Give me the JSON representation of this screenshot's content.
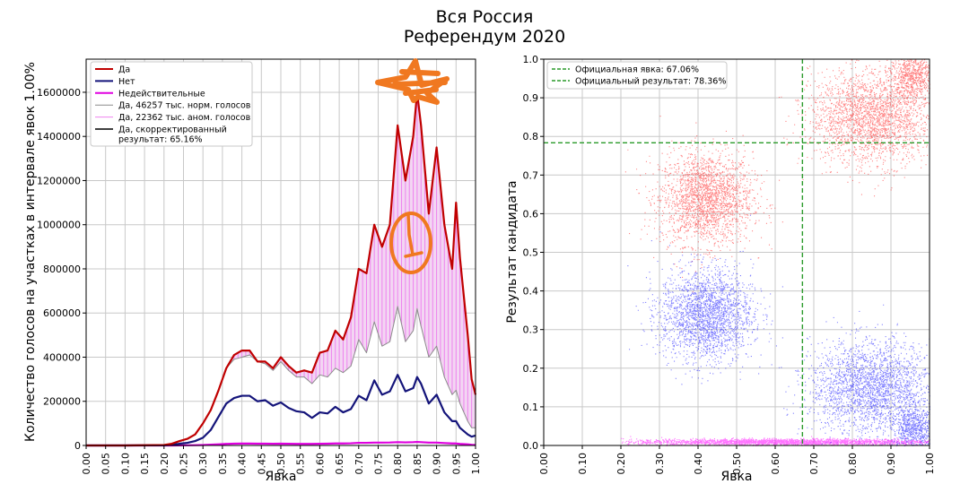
{
  "page": {
    "title": "Вся Россия",
    "subtitle": "Референдум 2020"
  },
  "colors": {
    "yes": "#c00000",
    "no": "#14147a",
    "invalid": "#e000e0",
    "norm": "#8c8c8c",
    "anom": "#ee82ee",
    "corrected": "#000000",
    "official": "#2a9a2a",
    "scatter_yes": "#ff2020",
    "scatter_no": "#1414ff",
    "scatter_invalid": "#ff00ff",
    "annotation": "#f07820"
  },
  "chart_data": [
    {
      "type": "line",
      "xlabel": "Явка",
      "ylabel": "Количество голосов на участках в интервале явок 1.00%",
      "xlim": [
        0,
        1
      ],
      "ylim": [
        0,
        1750000
      ],
      "x_ticks": [
        "0.00",
        "0.05",
        "0.10",
        "0.15",
        "0.20",
        "0.25",
        "0.30",
        "0.35",
        "0.40",
        "0.45",
        "0.50",
        "0.55",
        "0.60",
        "0.65",
        "0.70",
        "0.75",
        "0.80",
        "0.85",
        "0.90",
        "0.95",
        "1.00"
      ],
      "y_ticks": [
        "0",
        "200000",
        "400000",
        "600000",
        "800000",
        "1000000",
        "1200000",
        "1400000",
        "1600000"
      ],
      "grid": true,
      "legend_position": "top-left",
      "legend": [
        {
          "label": "Да",
          "series": "yes"
        },
        {
          "label": "Нет",
          "series": "no"
        },
        {
          "label": "Недействительные",
          "series": "invalid"
        },
        {
          "label": "Да, 46257 тыс. норм. голосов",
          "series": "norm"
        },
        {
          "label": "Да, 22362 тыс. аном. голосов",
          "series": "anom"
        },
        {
          "label": "Да, скорректированный",
          "label2": "результат: 65.16%",
          "series": "corrected"
        }
      ],
      "x": [
        0,
        0.1,
        0.2,
        0.22,
        0.24,
        0.26,
        0.28,
        0.3,
        0.32,
        0.34,
        0.36,
        0.38,
        0.4,
        0.42,
        0.44,
        0.46,
        0.48,
        0.5,
        0.52,
        0.54,
        0.56,
        0.58,
        0.6,
        0.62,
        0.64,
        0.66,
        0.68,
        0.7,
        0.72,
        0.74,
        0.76,
        0.78,
        0.8,
        0.82,
        0.84,
        0.85,
        0.86,
        0.88,
        0.9,
        0.92,
        0.94,
        0.95,
        0.96,
        0.98,
        0.99,
        1.0
      ],
      "series": [
        {
          "name": "Да",
          "key": "yes",
          "values": [
            0,
            0,
            2000,
            8000,
            20000,
            30000,
            50000,
            100000,
            160000,
            250000,
            350000,
            410000,
            430000,
            430000,
            380000,
            380000,
            350000,
            400000,
            360000,
            330000,
            340000,
            330000,
            420000,
            430000,
            520000,
            480000,
            580000,
            800000,
            780000,
            1000000,
            900000,
            1000000,
            1450000,
            1200000,
            1400000,
            1600000,
            1450000,
            1050000,
            1350000,
            1000000,
            800000,
            1100000,
            850000,
            500000,
            300000,
            230000
          ]
        },
        {
          "name": "Нет",
          "key": "no",
          "values": [
            0,
            0,
            1000,
            3000,
            8000,
            12000,
            20000,
            35000,
            70000,
            130000,
            190000,
            215000,
            225000,
            225000,
            200000,
            205000,
            180000,
            195000,
            170000,
            155000,
            150000,
            125000,
            150000,
            145000,
            175000,
            150000,
            165000,
            225000,
            205000,
            295000,
            230000,
            245000,
            320000,
            245000,
            260000,
            310000,
            280000,
            190000,
            230000,
            150000,
            110000,
            110000,
            80000,
            50000,
            40000,
            45000
          ]
        },
        {
          "name": "Недействительные",
          "key": "invalid",
          "values": [
            0,
            0,
            0,
            0,
            500,
            800,
            1200,
            2000,
            3500,
            5000,
            7000,
            8000,
            8500,
            8500,
            8000,
            8000,
            7500,
            8000,
            7500,
            7000,
            7000,
            7000,
            7500,
            8000,
            9000,
            9000,
            10000,
            12000,
            12000,
            13000,
            13000,
            13500,
            15000,
            14000,
            15000,
            16000,
            15000,
            13000,
            13000,
            11000,
            9000,
            9000,
            7000,
            5000,
            3000,
            2000
          ]
        },
        {
          "name": "Да, 46257 тыс. норм. голосов",
          "key": "norm",
          "values": [
            0,
            0,
            2000,
            8000,
            20000,
            30000,
            50000,
            100000,
            160000,
            250000,
            350000,
            390000,
            400000,
            410000,
            380000,
            370000,
            340000,
            380000,
            340000,
            310000,
            310000,
            280000,
            320000,
            310000,
            350000,
            330000,
            360000,
            480000,
            420000,
            560000,
            450000,
            470000,
            630000,
            470000,
            520000,
            620000,
            540000,
            400000,
            450000,
            310000,
            230000,
            250000,
            190000,
            110000,
            80000,
            80000
          ]
        }
      ]
    },
    {
      "type": "scatter",
      "xlabel": "Явка",
      "ylabel": "Результат кандидата",
      "xlim": [
        0,
        1
      ],
      "ylim": [
        0,
        1
      ],
      "x_ticks": [
        "0.00",
        "0.10",
        "0.20",
        "0.30",
        "0.40",
        "0.50",
        "0.60",
        "0.70",
        "0.80",
        "0.90",
        "1.00"
      ],
      "y_ticks": [
        "0.0",
        "0.1",
        "0.2",
        "0.3",
        "0.4",
        "0.5",
        "0.6",
        "0.7",
        "0.8",
        "0.9",
        "1.0"
      ],
      "grid": true,
      "legend_position": "top-left",
      "official_turnout": 0.6706,
      "official_result": 0.7836,
      "legend": [
        {
          "label": "Официальная явка: 67.06%"
        },
        {
          "label": "Официальный результат: 78.36%"
        }
      ],
      "clusters": [
        {
          "series": "yes",
          "center": [
            0.42,
            0.64
          ],
          "spread": [
            0.06,
            0.06
          ],
          "n": 2200
        },
        {
          "series": "yes",
          "center": [
            0.85,
            0.85
          ],
          "spread": [
            0.08,
            0.06
          ],
          "n": 2400
        },
        {
          "series": "yes",
          "center": [
            0.96,
            0.96
          ],
          "spread": [
            0.03,
            0.03
          ],
          "n": 700
        },
        {
          "series": "no",
          "center": [
            0.42,
            0.34
          ],
          "spread": [
            0.06,
            0.06
          ],
          "n": 2200
        },
        {
          "series": "no",
          "center": [
            0.85,
            0.15
          ],
          "spread": [
            0.08,
            0.06
          ],
          "n": 2400
        },
        {
          "series": "no",
          "center": [
            0.96,
            0.04
          ],
          "spread": [
            0.03,
            0.03
          ],
          "n": 700
        },
        {
          "series": "invalid",
          "center": [
            0.62,
            0.01
          ],
          "spread": [
            0.2,
            0.004
          ],
          "n": 2500
        }
      ]
    }
  ]
}
